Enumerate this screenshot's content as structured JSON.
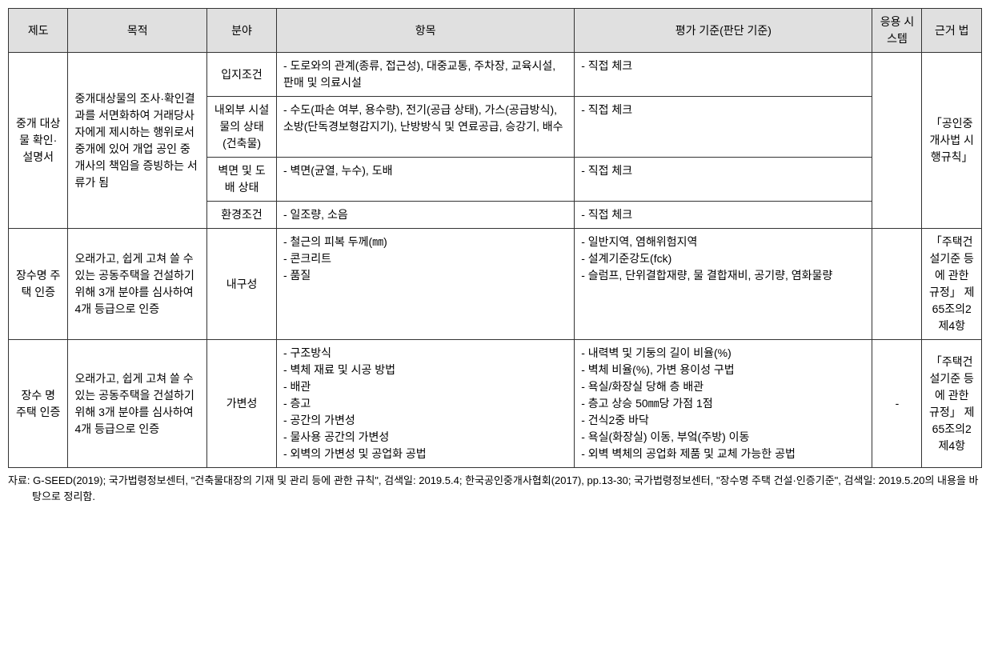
{
  "headers": {
    "system": "제도",
    "purpose": "목적",
    "field": "분야",
    "item": "항목",
    "criteria": "평가 기준(판단 기준)",
    "app": "응용 시스템",
    "law": "근거 법"
  },
  "section1": {
    "system": "중개 대상물 확인· 설명서",
    "purpose": "중개대상물의 조사·확인결과를 서면화하여 거래당사자에게 제시하는 행위로서 중개에 있어 개업 공인 중개사의 책임을 증빙하는 서류가 됨",
    "law": "「공인중개사법 시행규칙」",
    "rows": [
      {
        "field": "입지조건",
        "item": "- 도로와의 관계(종류, 접근성), 대중교통, 주차장, 교육시설, 판매 및 의료시설",
        "criteria": "- 직접 체크"
      },
      {
        "field": "내외부 시설물의 상태(건축물)",
        "item": "- 수도(파손 여부, 용수량), 전기(공급 상태), 가스(공급방식), 소방(단독경보형감지기), 난방방식 및 연료공급, 승강기, 배수",
        "criteria": "- 직접 체크"
      },
      {
        "field": "벽면 및 도배 상태",
        "item": "- 벽면(균열, 누수), 도배",
        "criteria": "- 직접 체크"
      },
      {
        "field": "환경조건",
        "item": "- 일조량, 소음",
        "criteria": "- 직접 체크"
      }
    ]
  },
  "section2": {
    "system": "장수명 주택 인증",
    "purpose": "오래가고, 쉽게 고쳐 쓸 수 있는 공동주택을 건설하기 위해 3개 분야를 심사하여 4개 등급으로 인증",
    "field": "내구성",
    "item_lines": [
      "- 철근의 피복 두께(㎜)",
      "- 콘크리트",
      "- 품질"
    ],
    "criteria_lines": [
      "- 일반지역, 염해위험지역",
      "- 설계기준강도(fck)",
      "- 슬럼프, 단위결합재량, 물 결합재비, 공기량, 염화물량"
    ],
    "law": "「주택건설기준 등에 관한 규정」 제65조의2제4항"
  },
  "section3": {
    "system": "장수 명 주택 인증",
    "purpose": "오래가고, 쉽게 고쳐 쓸 수 있는 공동주택을 건설하기 위해 3개 분야를 심사하여 4개 등급으로 인증",
    "field": "가변성",
    "item_lines": [
      "- 구조방식",
      "- 벽체 재료 및 시공 방법",
      "- 배관",
      "- 층고",
      "- 공간의 가변성",
      "- 물사용 공간의 가변성",
      "- 외벽의 가변성 및 공업화 공법"
    ],
    "criteria_lines": [
      "- 내력벽 및 기둥의 길이 비율(%)",
      "- 벽체 비율(%), 가변 용이성 구법",
      "- 욕실/화장실 당해 층 배관",
      "- 층고 상승 50㎜당 가점 1점",
      "- 건식2중 바닥",
      "- 욕실(화장실) 이동, 부엌(주방) 이동",
      "- 외벽 벽체의 공업화 제품 및 교체 가능한 공법"
    ],
    "app": "-",
    "law": "「주택건설기준 등에 관한 규정」 제65조의2제4항"
  },
  "footnote": "자료: G-SEED(2019); 국가법령정보센터, \"건축물대장의 기재 및 관리 등에 관한 규칙\", 검색일: 2019.5.4; 한국공인중개사협회(2017), pp.13-30; 국가법령정보센터, \"장수명 주택 건설·인증기준\", 검색일: 2019.5.20의 내용을 바탕으로 정리함."
}
